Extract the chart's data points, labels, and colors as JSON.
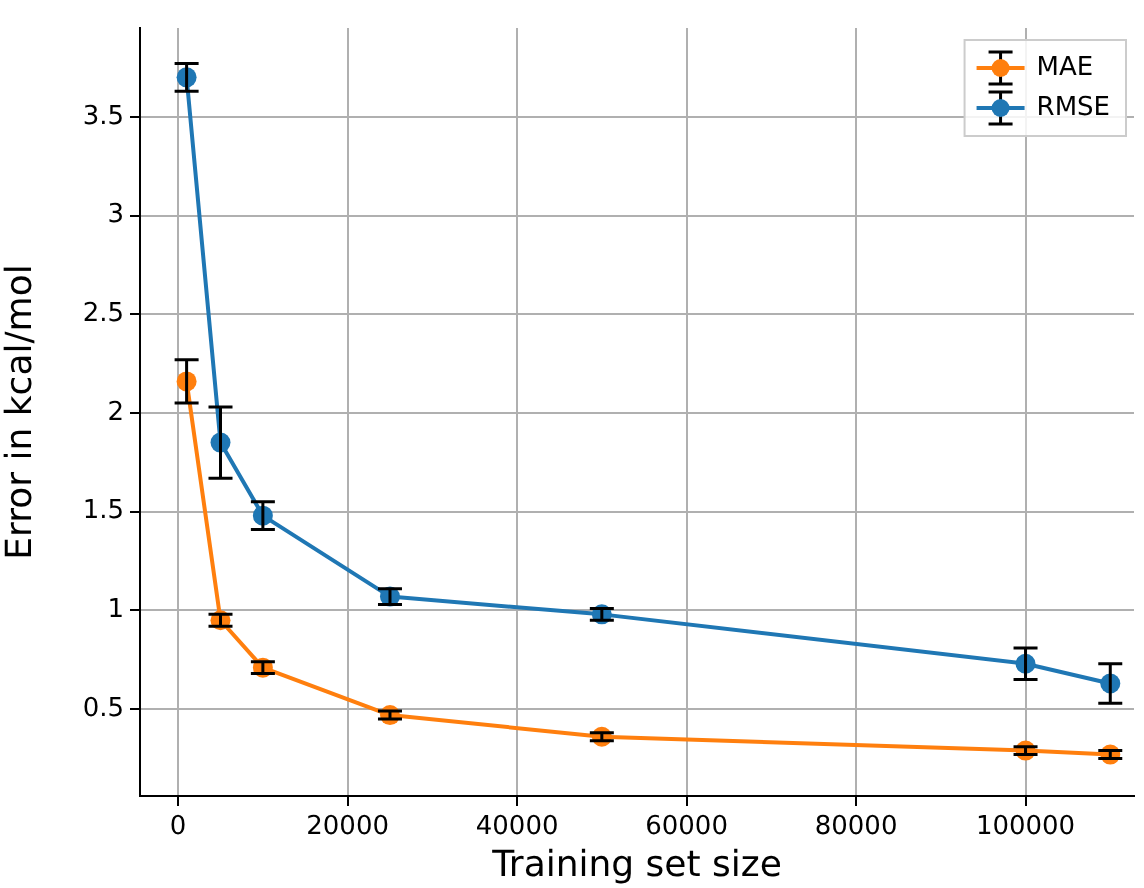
{
  "chart_data": {
    "type": "line",
    "xlabel": "Training set size",
    "ylabel": "Error in kcal/mol",
    "x": [
      1000,
      5000,
      10000,
      25000,
      50000,
      100000,
      110000
    ],
    "series": [
      {
        "name": "MAE",
        "color": "#ff7f0e",
        "values": [
          2.16,
          0.95,
          0.71,
          0.47,
          0.36,
          0.29,
          0.27
        ],
        "errors": [
          0.11,
          0.03,
          0.03,
          0.02,
          0.02,
          0.02,
          0.02
        ]
      },
      {
        "name": "RMSE",
        "color": "#1f77b4",
        "values": [
          3.7,
          1.85,
          1.48,
          1.07,
          0.98,
          0.73,
          0.63
        ],
        "errors": [
          0.07,
          0.18,
          0.07,
          0.04,
          0.03,
          0.08,
          0.1
        ]
      }
    ],
    "xlim": [
      -4500,
      112800
    ],
    "ylim": [
      0.06,
      3.95
    ],
    "xticks": [
      0,
      20000,
      40000,
      60000,
      80000,
      100000
    ],
    "yticks": [
      0.5,
      1,
      1.5,
      2,
      2.5,
      3,
      3.5
    ],
    "grid": true,
    "legend": "top right",
    "marker": "circle",
    "line_style": "solid"
  }
}
